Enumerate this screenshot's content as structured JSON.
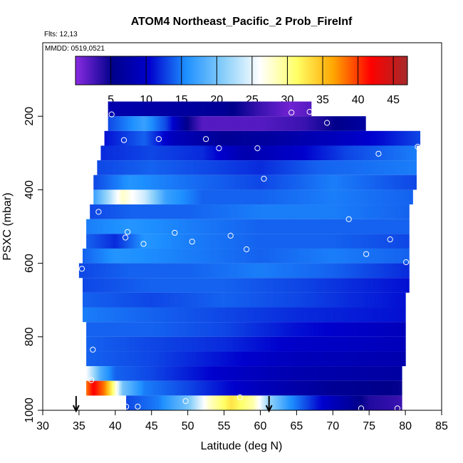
{
  "chart_data": {
    "type": "heatmap",
    "title": "ATOM4 Northeast_Pacific_2 Prob_FireInf",
    "flights_label": "Flts: 12,13",
    "mmdd_label": "MMDD: 0519,0521",
    "xlabel": "Latitude (deg N)",
    "ylabel": "PSXC (mbar)",
    "xlim": [
      30,
      85
    ],
    "ylim": [
      1000,
      0
    ],
    "x_ticks": [
      30,
      35,
      40,
      45,
      50,
      55,
      60,
      65,
      70,
      75,
      80,
      85
    ],
    "x_tick_labels": [
      "30",
      "35",
      "40",
      "45",
      "50",
      "55",
      "60",
      "65",
      "70",
      "75",
      "80",
      "85"
    ],
    "y_ticks": [
      200,
      400,
      600,
      800,
      1000
    ],
    "y_tick_labels": [
      "200",
      "400",
      "600",
      "800",
      "1000"
    ],
    "colorbar": {
      "min": 0,
      "max": 47,
      "ticks": [
        5,
        10,
        15,
        20,
        25,
        30,
        35,
        40,
        45
      ],
      "tick_labels": [
        "5",
        "10",
        "15",
        "20",
        "25",
        "30",
        "35",
        "40",
        "45"
      ],
      "colors": [
        "#8a2be2",
        "#00008b",
        "#0000cd",
        "#1e90ff",
        "#87cefa",
        "#ffffff",
        "#ffff66",
        "#ffa500",
        "#ff0000",
        "#a52a2a"
      ]
    },
    "rows": [
      {
        "p": 180,
        "x0": 39.0,
        "x1": 67.0,
        "anchors": [
          [
            39,
            8
          ],
          [
            48,
            7
          ],
          [
            55,
            6
          ],
          [
            60,
            3
          ],
          [
            64,
            1
          ],
          [
            67,
            2
          ]
        ]
      },
      {
        "p": 220,
        "x0": 39.0,
        "x1": 74.5,
        "anchors": [
          [
            39,
            13
          ],
          [
            44,
            17
          ],
          [
            47,
            13
          ],
          [
            50,
            5
          ],
          [
            52,
            2
          ],
          [
            60,
            2
          ],
          [
            66,
            3
          ],
          [
            70,
            5
          ],
          [
            74.5,
            7
          ]
        ]
      },
      {
        "p": 260,
        "x0": 38.5,
        "x1": 82.0,
        "anchors": [
          [
            38.5,
            11
          ],
          [
            44,
            14
          ],
          [
            48,
            9
          ],
          [
            55,
            6
          ],
          [
            62,
            7
          ],
          [
            70,
            9
          ],
          [
            77,
            11
          ],
          [
            82,
            13
          ]
        ]
      },
      {
        "p": 300,
        "x0": 38.0,
        "x1": 81.5,
        "anchors": [
          [
            38,
            12
          ],
          [
            45,
            13
          ],
          [
            52,
            12
          ],
          [
            58,
            8
          ],
          [
            65,
            10
          ],
          [
            72,
            13
          ],
          [
            81.5,
            15
          ]
        ]
      },
      {
        "p": 340,
        "x0": 37.5,
        "x1": 81.5,
        "anchors": [
          [
            37.5,
            13
          ],
          [
            45,
            14
          ],
          [
            53,
            13
          ],
          [
            60,
            12
          ],
          [
            68,
            14
          ],
          [
            81.5,
            15
          ]
        ]
      },
      {
        "p": 380,
        "x0": 37.0,
        "x1": 81.5,
        "anchors": [
          [
            37,
            13
          ],
          [
            42,
            16
          ],
          [
            47,
            15
          ],
          [
            53,
            14
          ],
          [
            60,
            13
          ],
          [
            70,
            15
          ],
          [
            81.5,
            13
          ]
        ]
      },
      {
        "p": 420,
        "x0": 37.0,
        "x1": 81.0,
        "anchors": [
          [
            37,
            17
          ],
          [
            39,
            22
          ],
          [
            41,
            28
          ],
          [
            44,
            24
          ],
          [
            47,
            17
          ],
          [
            52,
            14
          ],
          [
            60,
            14
          ],
          [
            70,
            15
          ],
          [
            81,
            14
          ]
        ]
      },
      {
        "p": 460,
        "x0": 36.5,
        "x1": 80.5,
        "anchors": [
          [
            36.5,
            13
          ],
          [
            42,
            14
          ],
          [
            50,
            14
          ],
          [
            60,
            15
          ],
          [
            70,
            15
          ],
          [
            80.5,
            14
          ]
        ]
      },
      {
        "p": 500,
        "x0": 36.0,
        "x1": 80.5,
        "anchors": [
          [
            36,
            15
          ],
          [
            42,
            16
          ],
          [
            50,
            15
          ],
          [
            60,
            14
          ],
          [
            70,
            14
          ],
          [
            80.5,
            14
          ]
        ]
      },
      {
        "p": 540,
        "x0": 36.0,
        "x1": 80.5,
        "anchors": [
          [
            36,
            14
          ],
          [
            40,
            12
          ],
          [
            44,
            16
          ],
          [
            50,
            15
          ],
          [
            60,
            14
          ],
          [
            70,
            14
          ],
          [
            80.5,
            13
          ]
        ]
      },
      {
        "p": 580,
        "x0": 35.5,
        "x1": 80.5,
        "anchors": [
          [
            35.5,
            14
          ],
          [
            40,
            16
          ],
          [
            50,
            15
          ],
          [
            60,
            14
          ],
          [
            70,
            15
          ],
          [
            80.5,
            14
          ]
        ]
      },
      {
        "p": 620,
        "x0": 35.0,
        "x1": 80.5,
        "anchors": [
          [
            35,
            13
          ],
          [
            42,
            14
          ],
          [
            50,
            14
          ],
          [
            60,
            15
          ],
          [
            70,
            14
          ],
          [
            80.5,
            12
          ]
        ]
      },
      {
        "p": 660,
        "x0": 35.5,
        "x1": 80.5,
        "anchors": [
          [
            35.5,
            13
          ],
          [
            45,
            14
          ],
          [
            55,
            14
          ],
          [
            65,
            13
          ],
          [
            80.5,
            11
          ]
        ]
      },
      {
        "p": 700,
        "x0": 35.5,
        "x1": 80.0,
        "anchors": [
          [
            35.5,
            14
          ],
          [
            45,
            13
          ],
          [
            55,
            14
          ],
          [
            65,
            13
          ],
          [
            80,
            11
          ]
        ]
      },
      {
        "p": 740,
        "x0": 35.5,
        "x1": 80.0,
        "anchors": [
          [
            35.5,
            15
          ],
          [
            45,
            14
          ],
          [
            55,
            13
          ],
          [
            65,
            12
          ],
          [
            80,
            11
          ]
        ]
      },
      {
        "p": 780,
        "x0": 36.0,
        "x1": 80.0,
        "anchors": [
          [
            36,
            14
          ],
          [
            45,
            14
          ],
          [
            55,
            13
          ],
          [
            65,
            11
          ],
          [
            80,
            9
          ]
        ]
      },
      {
        "p": 820,
        "x0": 36.0,
        "x1": 80.0,
        "anchors": [
          [
            36,
            14
          ],
          [
            45,
            13
          ],
          [
            55,
            12
          ],
          [
            65,
            10
          ],
          [
            80,
            9
          ]
        ]
      },
      {
        "p": 860,
        "x0": 36.0,
        "x1": 80.0,
        "anchors": [
          [
            36,
            14
          ],
          [
            45,
            13
          ],
          [
            55,
            11
          ],
          [
            65,
            9
          ],
          [
            80,
            8
          ]
        ]
      },
      {
        "p": 900,
        "x0": 36.0,
        "x1": 79.5,
        "anchors": [
          [
            36,
            26
          ],
          [
            38,
            18
          ],
          [
            40,
            14
          ],
          [
            45,
            13
          ],
          [
            55,
            10
          ],
          [
            65,
            8
          ],
          [
            79.5,
            7
          ]
        ]
      },
      {
        "p": 940,
        "x0": 36.0,
        "x1": 79.5,
        "anchors": [
          [
            36,
            38
          ],
          [
            37,
            42
          ],
          [
            38.5,
            38
          ],
          [
            39.5,
            32
          ],
          [
            41,
            20
          ],
          [
            44,
            15
          ],
          [
            50,
            13
          ],
          [
            60,
            9
          ],
          [
            70,
            6
          ],
          [
            79.5,
            5
          ]
        ]
      },
      {
        "p": 980,
        "x0": 41.5,
        "x1": 79.5,
        "anchors": [
          [
            41.5,
            13
          ],
          [
            46,
            15
          ],
          [
            50,
            20
          ],
          [
            53,
            28
          ],
          [
            56,
            33
          ],
          [
            59,
            29
          ],
          [
            61,
            22
          ],
          [
            64,
            16
          ],
          [
            68,
            11
          ],
          [
            72,
            7
          ],
          [
            75,
            4
          ],
          [
            79.5,
            3
          ]
        ]
      }
    ],
    "points": [
      [
        39.5,
        195
      ],
      [
        41.2,
        265
      ],
      [
        46.0,
        262
      ],
      [
        52.5,
        262
      ],
      [
        54.3,
        287
      ],
      [
        59.6,
        287
      ],
      [
        64.3,
        190
      ],
      [
        66.8,
        188
      ],
      [
        69.2,
        218
      ],
      [
        76.3,
        302
      ],
      [
        81.7,
        283
      ],
      [
        60.5,
        370
      ],
      [
        37.7,
        460
      ],
      [
        41.7,
        515
      ],
      [
        41.4,
        530
      ],
      [
        43.9,
        547
      ],
      [
        48.2,
        517
      ],
      [
        50.6,
        541
      ],
      [
        55.9,
        525
      ],
      [
        58.1,
        562
      ],
      [
        72.2,
        480
      ],
      [
        74.6,
        575
      ],
      [
        77.9,
        535
      ],
      [
        80.1,
        597
      ],
      [
        35.4,
        615
      ],
      [
        36.9,
        835
      ],
      [
        36.7,
        918
      ],
      [
        41.5,
        990
      ],
      [
        43.1,
        990
      ],
      [
        49.7,
        975
      ],
      [
        57.2,
        965
      ],
      [
        73.9,
        995
      ],
      [
        78.9,
        995
      ]
    ],
    "arrows_lat": [
      34.6,
      61.2
    ]
  }
}
